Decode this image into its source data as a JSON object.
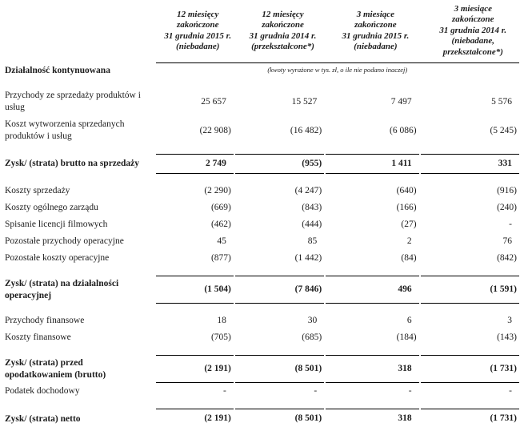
{
  "document": {
    "section_title": "Działalność kontynuowana",
    "units_note": "(kwoty wyrażone w tys. zł, o ile nie podano inaczej)"
  },
  "columns": [
    {
      "label": "12 miesięcy\nzakończone\n31 grudnia 2015 r.\n(niebadane)"
    },
    {
      "label": "12 miesięcy\nzakończone\n31 grudnia 2014 r.\n(przekształcone*)"
    },
    {
      "label": "3 miesiące\nzakończone\n31 grudnia 2015 r.\n(niebadane)"
    },
    {
      "label": "3 miesiące\nzakończone\n31 grudnia 2014 r.\n(niebadane,\nprzekształcone*)"
    }
  ],
  "rows": [
    {
      "label": "Przychody ze sprzedaży produktów i usług",
      "values": [
        "25 657",
        "15 527",
        "7 497",
        "5 576"
      ],
      "type": "data",
      "gap_before": true
    },
    {
      "label": "Koszt wytworzenia sprzedanych produktów i usług",
      "values": [
        "(22 908)",
        "(16 482)",
        "(6 086)",
        "(5 245)"
      ],
      "type": "data",
      "gap_before": false
    },
    {
      "label": "Zysk/ (strata) brutto na sprzedaży",
      "values": [
        "2 749",
        "(955)",
        "1 411",
        "331"
      ],
      "type": "total",
      "gap_before": true
    },
    {
      "label": "Koszty sprzedaży",
      "values": [
        "(2 290)",
        "(4 247)",
        "(640)",
        "(916)"
      ],
      "type": "data",
      "gap_before": true
    },
    {
      "label": "Koszty ogólnego zarządu",
      "values": [
        "(669)",
        "(843)",
        "(166)",
        "(240)"
      ],
      "type": "data",
      "gap_before": false
    },
    {
      "label": "Spisanie licencji filmowych",
      "values": [
        "(462)",
        "(444)",
        "(27)",
        "-"
      ],
      "type": "data",
      "gap_before": false
    },
    {
      "label": "Pozostałe przychody operacyjne",
      "values": [
        "45",
        "85",
        "2",
        "76"
      ],
      "type": "data",
      "gap_before": false
    },
    {
      "label": "Pozostałe koszty operacyjne",
      "values": [
        "(877)",
        "(1 442)",
        "(84)",
        "(842)"
      ],
      "type": "data",
      "gap_before": false
    },
    {
      "label": "Zysk/ (strata) na działalności operacyjnej",
      "values": [
        "(1 504)",
        "(7 846)",
        "496",
        "(1 591)"
      ],
      "type": "total",
      "gap_before": true
    },
    {
      "label": "Przychody finansowe",
      "values": [
        "18",
        "30",
        "6",
        "3"
      ],
      "type": "data",
      "gap_before": true
    },
    {
      "label": "Koszty finansowe",
      "values": [
        "(705)",
        "(685)",
        "(184)",
        "(143)"
      ],
      "type": "data",
      "gap_before": false
    },
    {
      "label": "Zysk/ (strata) przed opodatkowaniem (brutto)",
      "values": [
        "(2 191)",
        "(8 501)",
        "318",
        "(1 731)"
      ],
      "type": "total",
      "gap_before": true
    },
    {
      "label": "Podatek dochodowy",
      "values": [
        "-",
        "-",
        "-",
        "-"
      ],
      "type": "data",
      "gap_before": false
    },
    {
      "label": "Zysk/ (strata) netto",
      "values": [
        "(2 191)",
        "(8 501)",
        "318",
        "(1 731)"
      ],
      "type": "total-final",
      "gap_before": true
    }
  ]
}
